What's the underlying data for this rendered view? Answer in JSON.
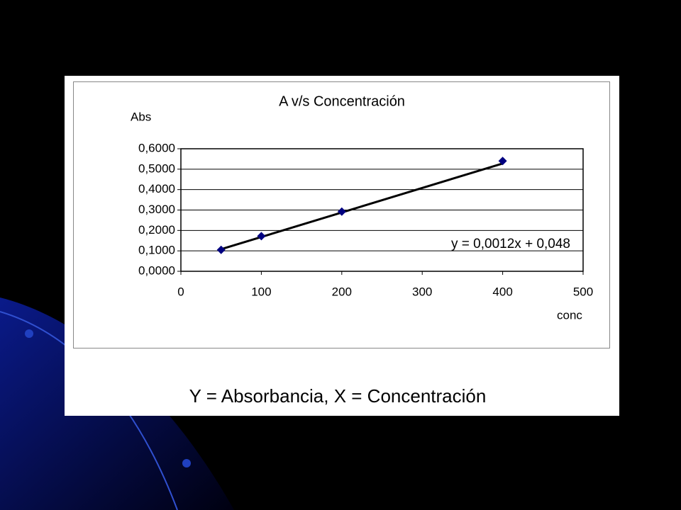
{
  "chart_data": {
    "type": "scatter",
    "title": "A v/s Concentración",
    "y_label": "Abs",
    "x_label": "conc",
    "caption": "Y = Absorbancia, X = Concentración",
    "x": [
      50,
      100,
      200,
      400
    ],
    "series": [
      {
        "name": "Abs",
        "color": "#000080",
        "values": [
          0.105,
          0.172,
          0.292,
          0.54
        ]
      }
    ],
    "trendline": {
      "slope": 0.0012,
      "intercept": 0.048,
      "label": "y = 0,0012x + 0,048",
      "color": "#000000"
    },
    "xlim": [
      0,
      500
    ],
    "xticks": [
      0,
      100,
      200,
      300,
      400,
      500
    ],
    "ylim": [
      0,
      0.6
    ],
    "yticks": [
      {
        "value": 0,
        "label": "0,0000"
      },
      {
        "value": 0.1,
        "label": "0,1000"
      },
      {
        "value": 0.2,
        "label": "0,2000"
      },
      {
        "value": 0.3,
        "label": "0,3000"
      },
      {
        "value": 0.4,
        "label": "0,4000"
      },
      {
        "value": 0.5,
        "label": "0,5000"
      },
      {
        "value": 0.6,
        "label": "0,6000"
      }
    ],
    "grid": true
  }
}
